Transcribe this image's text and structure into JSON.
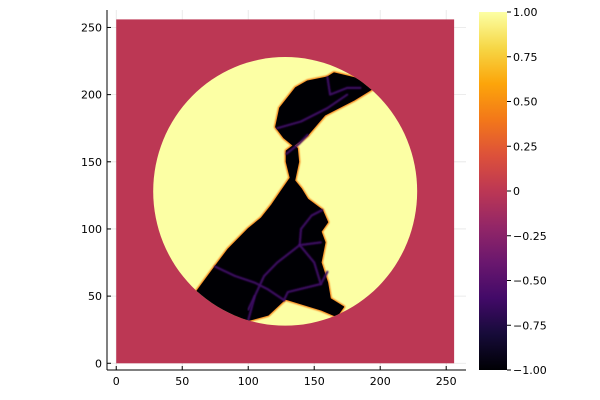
{
  "chart_data": {
    "type": "heatmap",
    "title": "",
    "xlabel": "",
    "ylabel": "",
    "xlim": [
      -7,
      265
    ],
    "ylim": [
      -5,
      263
    ],
    "x_ticks": [
      {
        "value": 0,
        "label": "0"
      },
      {
        "value": 50,
        "label": "50"
      },
      {
        "value": 100,
        "label": "100"
      },
      {
        "value": 150,
        "label": "150"
      },
      {
        "value": 200,
        "label": "200"
      },
      {
        "value": 250,
        "label": "250"
      }
    ],
    "y_ticks": [
      {
        "value": 0,
        "label": "0"
      },
      {
        "value": 50,
        "label": "50"
      },
      {
        "value": 100,
        "label": "100"
      },
      {
        "value": 150,
        "label": "150"
      },
      {
        "value": 200,
        "label": "200"
      },
      {
        "value": 250,
        "label": "250"
      }
    ],
    "grid": true,
    "grid_size": [
      256,
      256
    ],
    "colormap": "inferno",
    "colorbar": {
      "range": [
        -1,
        1
      ],
      "ticks": [
        {
          "value": 1.0,
          "label": "1.00"
        },
        {
          "value": 0.75,
          "label": "0.75"
        },
        {
          "value": 0.5,
          "label": "0.50"
        },
        {
          "value": 0.25,
          "label": "0.25"
        },
        {
          "value": 0.0,
          "label": "0"
        },
        {
          "value": -0.25,
          "label": "−0.25"
        },
        {
          "value": -0.5,
          "label": "−0.50"
        },
        {
          "value": -0.75,
          "label": "−0.75"
        },
        {
          "value": -1.0,
          "label": "−1.00"
        }
      ],
      "placement": "right"
    },
    "background_value": 0,
    "disc": {
      "center": [
        128,
        128
      ],
      "radius": 100,
      "value": 1
    },
    "phase_region": {
      "value": -1,
      "outline": [
        [
          60,
          52
        ],
        [
          78,
          37
        ],
        [
          100,
          32
        ],
        [
          115,
          36
        ],
        [
          127,
          47
        ],
        [
          128,
          48
        ],
        [
          155,
          40
        ],
        [
          167,
          35
        ],
        [
          172,
          42
        ],
        [
          162,
          48
        ],
        [
          160,
          60
        ],
        [
          155,
          75
        ],
        [
          158,
          90
        ],
        [
          155,
          98
        ],
        [
          160,
          105
        ],
        [
          156,
          114
        ],
        [
          145,
          122
        ],
        [
          140,
          130
        ],
        [
          135,
          136
        ],
        [
          138,
          150
        ],
        [
          137,
          160
        ],
        [
          127,
          168
        ],
        [
          121,
          176
        ],
        [
          124,
          190
        ],
        [
          136,
          205
        ],
        [
          145,
          210
        ],
        [
          160,
          213
        ],
        [
          165,
          216
        ],
        [
          182,
          212
        ],
        [
          195,
          205
        ],
        [
          180,
          196
        ],
        [
          158,
          185
        ],
        [
          145,
          170
        ],
        [
          129,
          158
        ],
        [
          129,
          150
        ],
        [
          132,
          138
        ],
        [
          125,
          128
        ],
        [
          118,
          118
        ],
        [
          110,
          108
        ],
        [
          100,
          100
        ],
        [
          85,
          85
        ],
        [
          75,
          72
        ]
      ]
    },
    "grain_boundaries": [
      [
        [
          127,
          47
        ],
        [
          130,
          53
        ],
        [
          155,
          59
        ],
        [
          160,
          68
        ]
      ],
      [
        [
          100,
          32
        ],
        [
          105,
          50
        ],
        [
          112,
          65
        ],
        [
          122,
          75
        ],
        [
          139,
          88
        ],
        [
          155,
          90
        ]
      ],
      [
        [
          127,
          47
        ],
        [
          115,
          55
        ],
        [
          105,
          60
        ],
        [
          90,
          65
        ],
        [
          75,
          72
        ]
      ],
      [
        [
          105,
          50
        ],
        [
          100,
          40
        ]
      ],
      [
        [
          122,
          175
        ],
        [
          140,
          180
        ],
        [
          160,
          190
        ],
        [
          175,
          200
        ]
      ],
      [
        [
          160,
          213
        ],
        [
          162,
          200
        ],
        [
          175,
          205
        ],
        [
          185,
          205
        ]
      ],
      [
        [
          129,
          156
        ],
        [
          138,
          163
        ],
        [
          145,
          170
        ]
      ],
      [
        [
          139,
          88
        ],
        [
          140,
          100
        ],
        [
          148,
          110
        ],
        [
          156,
          114
        ]
      ],
      [
        [
          155,
          59
        ],
        [
          150,
          75
        ],
        [
          139,
          88
        ]
      ]
    ]
  }
}
